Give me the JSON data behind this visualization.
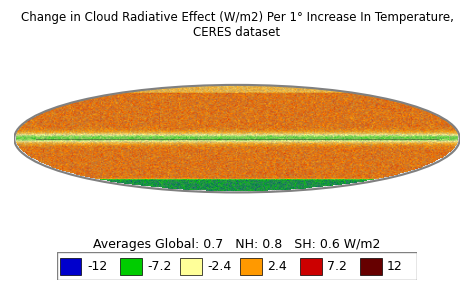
{
  "title": "Change in Cloud Radiative Effect (W/m2) Per 1° Increase In Temperature, CERES dataset",
  "averages_text": "Averages Global: 0.7   NH: 0.8   SH: 0.6 W/m2",
  "legend_items": [
    {
      "label": "-12",
      "color": "#0000cc"
    },
    {
      "label": "-7.2",
      "color": "#00cc00"
    },
    {
      "label": "-2.4",
      "color": "#ffff99"
    },
    {
      "label": "2.4",
      "color": "#ff9900"
    },
    {
      "label": "7.2",
      "color": "#cc0000"
    },
    {
      "label": "12",
      "color": "#660000"
    }
  ],
  "bg_color": "#d8d8d8",
  "fig_bg": "#ffffff",
  "title_fontsize": 8.5,
  "legend_fontsize": 9,
  "avg_fontsize": 9,
  "map_ellipse_color": "#c8c8c8",
  "map_dominant_color": "#e87020"
}
